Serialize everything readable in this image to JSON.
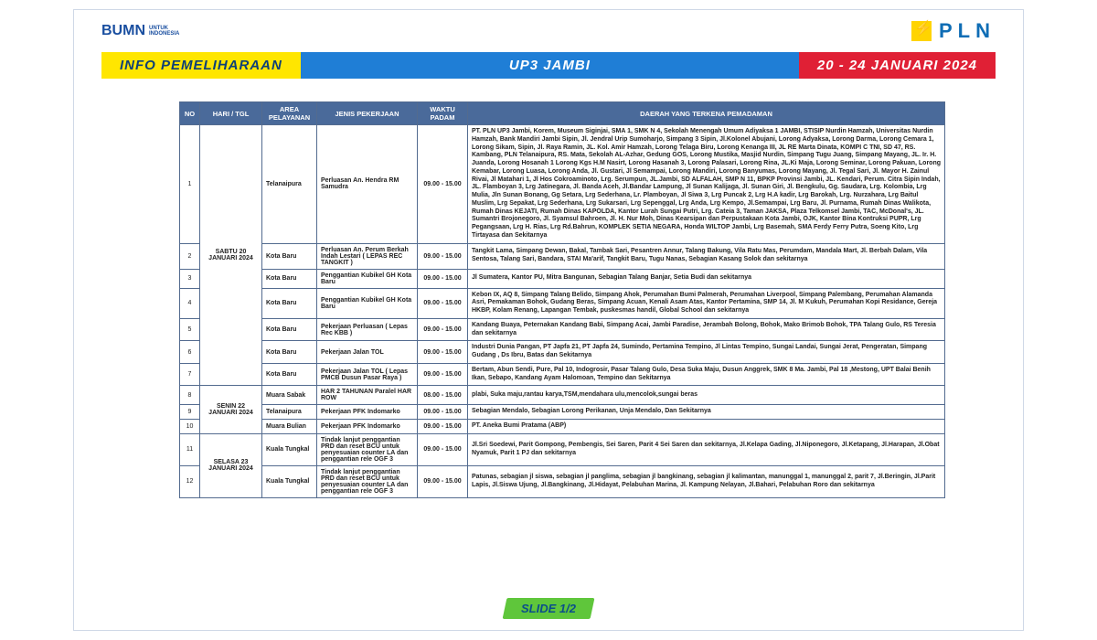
{
  "logos": {
    "bumn_text": "BUMN",
    "bumn_sub1": "UNTUK",
    "bumn_sub2": "INDONESIA",
    "pln_text": "PLN"
  },
  "banner": {
    "left": "INFO PEMELIHARAAN",
    "center": "UP3 JAMBI",
    "right": "20 - 24 JANUARI 2024"
  },
  "headers": {
    "no": "NO",
    "date": "HARI / TGL",
    "area": "AREA PELAYANAN",
    "job": "JENIS PEKERJAAN",
    "time": "WAKTU PADAM",
    "region": "DAERAH YANG TERKENA PEMADAMAN"
  },
  "group1_date": "SABTU 20 JANUARI 2024",
  "group2_date": "SENIN 22 JANUARI 2024",
  "group3_date": "SELASA 23 JANUARI 2024",
  "rows": {
    "r1": {
      "no": "1",
      "area": "Telanaipura",
      "job": "Perluasan An. Hendra RM Samudra",
      "time": "09.00 - 15.00",
      "region": "PT. PLN UP3 Jambi, Korem, Museum Siginjai, SMA 1, SMK N 4, Sekolah Menengah Umum Adiyaksa 1 JAMBI, STISIP Nurdin Hamzah, Universitas Nurdin Hamzah, Bank Mandiri Jambi Sipin, Jl. Jendral Urip Sumoharjo, Simpang 3 Sipin, Jl.Kolonel Abujani, Lorong Adyaksa, Lorong Darma, Lorong Cemara 1, Lorong Sikam, Sipin, Jl. Raya Ramin, JL. Kol. Amir Hamzah, Lorong Telaga Biru, Lorong Kenanga III, JL RE Marta Dinata, KOMPI C TNI, SD 47, RS. Kambang, PLN Telanaipura, RS. Mata, Sekolah AL-Azhar, Gedung GOS, Lorong Mustika, Masjid Nurdin, Simpang Tugu Juang, Simpang Mayang, JL. Ir. H. Juanda, Lorong Hosanah 1 Lorong Kgs H.M Nasirt, Lorong Hasanah 3, Lorong Palasari, Lorong Rina, JL.Ki Maja, Lorong Seminar, Lorong Pakuan, Lorong Kemabar, Lorong Luasa, Lorong Anda, Jl. Gustari, Jl Semampai, Lorong Mandiri, Lorong Banyumas, Lorong Mayang, Jl. Tegal Sari, Jl. Mayor H. Zainul Rivai, Jl Matahari 1, Jl Hos Cokroaminoto, Lrg. Serumpun, JL.Jambi, SD ALFALAH, SMP N 11, BPKP Provinsi Jambi, JL. Kendari, Perum. Citra Sipin Indah, JL. Flamboyan 3, Lrg Jatinegara, Jl. Banda Aceh, Jl.Bandar Lampung, Jl Sunan Kalijaga, Jl. Sunan Giri, Jl. Bengkulu, Gg. Saudara, Lrg. Kolombia, Lrg Mulia, Jln Sunan Bonang, Gg Setara, Lrg Sederhana, Lr. Plamboyan, Jl Siwa 3, Lrg Puncak 2, Lrg H.A kadir, Lrg Barokah, Lrg. Nurzahara, Lrg Baitul Muslim, Lrg Sepakat, Lrg Sederhana, Lrg Sukarsari, Lrg Sepenggal, Lrg Anda, Lrg Kempo, Jl.Semampai, Lrg Baru, Jl. Purnama, Rumah Dinas Walikota, Rumah Dinas KEJATI, Rumah Dinas KAPOLDA, Kantor Lurah Sungai Putri, Lrg. Cateia 3, Taman JAKSA, Plaza Telkomsel Jambi, TAC, McDonal's, JL. Sumantri Brojonegoro, Jl. Syamsul Bahroen, Jl. H. Nur Moh, Dinas Kearsipan dan Perpustakaan Kota Jambi, OJK, Kantor Bina Kontruksi PUPR, Lrg Pegangsaan, Lrg H. Rias, Lrg Rd.Bahrun, KOMPLEK SETIA NEGARA, Honda WILTOP Jambi, Lrg Basemah, SMA Ferdy Ferry Putra, Soeng Kito, Lrg Tirtayasa dan Sekitarnya"
    },
    "r2": {
      "no": "2",
      "area": "Kota Baru",
      "job": "Perluasan An. Perum Berkah Indah Lestari ( LEPAS REC TANGKIT )",
      "time": "09.00 - 15.00",
      "region": "Tangkit Lama, Simpang Dewan, Bakal, Tambak Sari, Pesantren Annur, Talang Bakung, Vila Ratu Mas, Perumdam, Mandala Mart, Jl. Berbah Dalam, Vila Sentosa, Talang Sari, Bandara, STAI Ma'arif, Tangkit Baru, Tugu Nanas, Sebagian Kasang Solok dan sekitarnya"
    },
    "r3": {
      "no": "3",
      "area": "Kota Baru",
      "job": "Penggantian Kubikel GH Kota Baru",
      "time": "09.00 - 15.00",
      "region": "Jl Sumatera, Kantor PU, Mitra Bangunan, Sebagian Talang Banjar, Setia Budi dan sekitarnya"
    },
    "r4": {
      "no": "4",
      "area": "Kota Baru",
      "job": "Penggantian Kubikel GH Kota Baru",
      "time": "09.00 - 15.00",
      "region": "Kebon IX, AQ 8, Simpang Talang Belido, Simpang Ahok, Perumahan Bumi Palmerah, Perumahan Liverpool, Simpang Palembang, Perumahan Alamanda Asri, Pemakaman Bohok, Gudang Beras, Simpang Acuan, Kenali Asam Atas, Kantor Pertamina, SMP 14, Jl. M Kukuh, Perumahan Kopi Residance, Gereja HKBP, Kolam Renang, Lapangan Tembak, puskesmas handil, Global School dan sekitarnya"
    },
    "r5": {
      "no": "5",
      "area": "Kota Baru",
      "job": "Pekerjaan Perluasan ( Lepas Rec KBB )",
      "time": "09.00 - 15.00",
      "region": "Kandang Buaya, Peternakan Kandang Babi, Simpang Acai, Jambi Paradise, Jerambah Bolong, Bohok, Mako Brimob Bohok, TPA Talang Gulo, RS Teresia dan sekitarnya"
    },
    "r6": {
      "no": "6",
      "area": "Kota Baru",
      "job": "Pekerjaan Jalan TOL",
      "time": "09.00 - 15.00",
      "region": "Industri Dunia Pangan, PT Japfa 21, PT Japfa 24, Sumindo, Pertamina Tempino, Jl Lintas Tempino, Sungai Landai,  Sungai Jerat, Pengeratan, Simpang Gudang , Ds Ibru, Batas dan Sekitarnya"
    },
    "r7": {
      "no": "7",
      "area": "Kota Baru",
      "job": "Pekerjaan Jalan TOL ( Lepas PMCB Dusun Pasar Raya )",
      "time": "09.00 - 15.00",
      "region": "Bertam, Abun Sendi, Pure, Pal 10, Indogrosir, Pasar Talang Gulo, Desa Suka Maju, Dusun Anggrek, SMK 8 Ma. Jambi, Pal 18 ,Mestong, UPT Balai Benih Ikan, Sebapo, Kandang Ayam Halomoan, Tempino dan Sekitarnya"
    },
    "r8": {
      "no": "8",
      "area": "Muara Sabak",
      "job": "HAR 2 TAHUNAN Paralel HAR ROW",
      "time": "08.00 - 15.00",
      "region": "plabi, Suka maju,rantau karya,TSM,mendahara ulu,mencolok,sungai beras"
    },
    "r9": {
      "no": "9",
      "area": "Telanaipura",
      "job": "Pekerjaan PFK Indomarko",
      "time": "09.00 - 15.00",
      "region": "Sebagian Mendalo, Sebagian Lorong Perikanan, Unja Mendalo, Dan Sekitarnya"
    },
    "r10": {
      "no": "10",
      "area": "Muara Bulian",
      "job": "Pekerjaan PFK Indomarko",
      "time": "09.00 - 15.00",
      "region": "PT. Aneka Bumi Pratama (ABP)"
    },
    "r11": {
      "no": "11",
      "area": "Kuala Tungkal",
      "job": "Tindak lanjut penggantian PRD dan reset BCU untuk penyesuaian counter LA dan penggantian rele OGF 3",
      "time": "09.00 - 15.00",
      "region": "Jl.Sri Soedewi, Parit Gompong, Pembengis, Sei Saren, Parit 4 Sei Saren dan sekitarnya, Jl.Kelapa Gading, Jl.Niponegoro, Jl.Ketapang, Jl.Harapan, Jl.Obat Nyamuk, Parit 1 PJ dan sekitarnya"
    },
    "r12": {
      "no": "12",
      "area": "Kuala Tungkal",
      "job": "Tindak lanjut penggantian PRD dan reset BCU untuk penyesuaian counter LA dan penggantian rele OGF 3",
      "time": "09.00 - 15.00",
      "region": "Patunas, sebagian jl siswa, sebagian jl panglima, sebagian jl bangkinang, sebagian jl kalimantan, manunggal 1, manunggal 2, parit 7, Jl.Beringin, Jl.Parit Lapis, Jl.Siswa Ujung, Jl.Bangkinang, Jl.Hidayat, Pelabuhan Marina, Jl. Kampung Nelayan, Jl.Bahari, Pelabuhan Roro dan sekitarnya"
    }
  },
  "slide_label": "SLIDE 1/2",
  "style": {
    "header_bg": "#4a6a9a",
    "border": "#536b8f",
    "yellow": "#ffe600",
    "blue": "#1f7ed6",
    "red": "#e02035",
    "green": "#5fc63b"
  }
}
